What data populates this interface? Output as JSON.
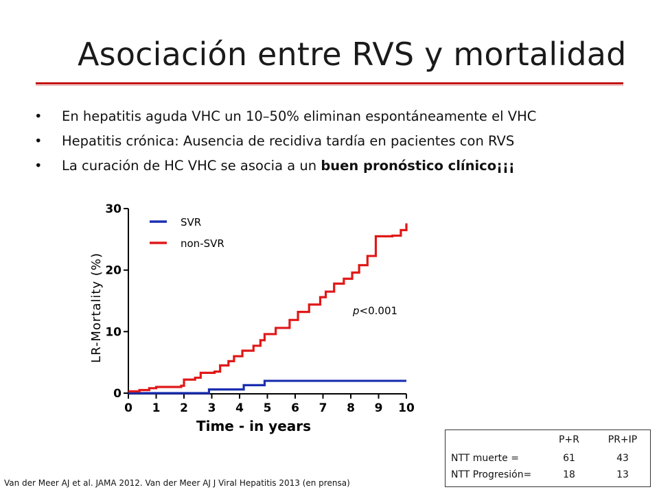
{
  "slide": {
    "title": "Asociación entre RVS y mortalidad",
    "accent_color": "#c00000",
    "bullets": [
      {
        "text": "En hepatitis aguda VHC un 10–50% eliminan espontáneamente el VHC"
      },
      {
        "text": "Hepatitis crónica: Ausencia de recidiva tardía en pacientes con RVS"
      },
      {
        "text": "La curación de HC VHC se asocia a un ",
        "bold": "buen pronóstico clínico",
        "suffix": "¡¡¡"
      }
    ],
    "bullet_glyph": "•"
  },
  "chart_data": {
    "type": "line",
    "xlabel": "Time - in years",
    "ylabel": "LR-Mortality (%)",
    "xlim": [
      0,
      10
    ],
    "ylim": [
      0,
      30
    ],
    "xticks": [
      "0",
      "1",
      "2",
      "3",
      "4",
      "5",
      "6",
      "7",
      "8",
      "9",
      "10"
    ],
    "yticks": [
      "0",
      "10",
      "20",
      "30"
    ],
    "annotation": "p<0.001",
    "legend_position": "top-left",
    "series": [
      {
        "name": "SVR",
        "color": "#1a2fb0",
        "x": [
          0,
          2.9,
          2.9,
          4.15,
          4.15,
          4.9,
          4.9,
          10
        ],
        "y": [
          0,
          0,
          0.6,
          0.6,
          1.3,
          1.3,
          2.0,
          2.0
        ]
      },
      {
        "name": "non-SVR",
        "color": "#e01818",
        "x": [
          0,
          0.4,
          0.75,
          1.0,
          1.9,
          2.0,
          2.4,
          2.6,
          3.1,
          3.3,
          3.6,
          3.8,
          4.1,
          4.5,
          4.75,
          4.9,
          5.3,
          5.8,
          6.1,
          6.5,
          6.9,
          7.1,
          7.4,
          7.75,
          8.05,
          8.3,
          8.6,
          8.9,
          9.5,
          9.8,
          10
        ],
        "y": [
          0.3,
          0.5,
          0.8,
          1.0,
          1.2,
          2.2,
          2.5,
          3.3,
          3.5,
          4.5,
          5.2,
          6.0,
          6.9,
          7.7,
          8.6,
          9.6,
          10.6,
          11.9,
          13.2,
          14.4,
          15.6,
          16.5,
          17.8,
          18.6,
          19.6,
          20.8,
          22.3,
          25.5,
          25.6,
          26.5,
          27.6
        ]
      }
    ]
  },
  "ntt_table": {
    "headers": [
      "",
      "P+R",
      "PR+IP"
    ],
    "rows": [
      [
        "NTT muerte =",
        "61",
        "43"
      ],
      [
        "NTT Progresión=",
        "18",
        "13"
      ]
    ]
  },
  "reference": "Van der Meer AJ et al. JAMA 2012. Van der Meer AJ J Viral Hepatitis 2013 (en prensa)"
}
